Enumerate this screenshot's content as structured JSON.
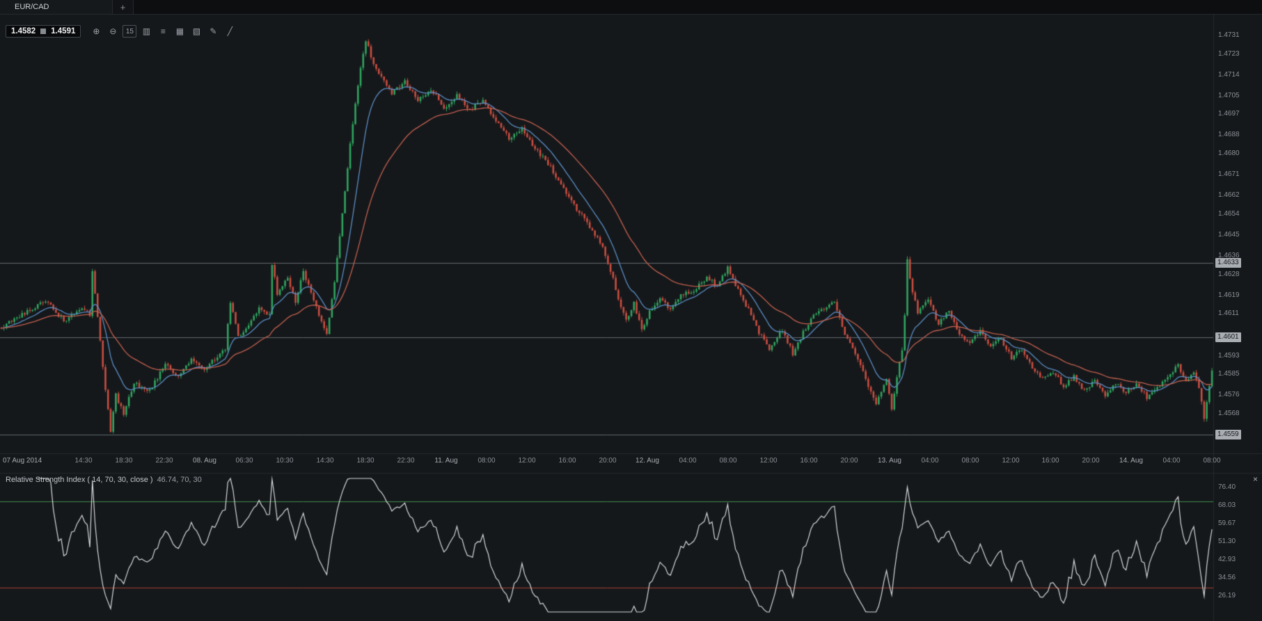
{
  "tabs": {
    "active_label": "EUR/CAD",
    "add_button": "+"
  },
  "toolbar": {
    "sell_price": "1.4582",
    "buy_price": "1.4591",
    "icons": [
      {
        "name": "zoom-in-icon",
        "glyph": "⊕",
        "boxed": false
      },
      {
        "name": "zoom-out-icon",
        "glyph": "⊖",
        "boxed": false
      },
      {
        "name": "timeframe-button",
        "glyph": "15",
        "boxed": true
      },
      {
        "name": "chart-style-icon",
        "glyph": "▥",
        "boxed": false
      },
      {
        "name": "indicators-icon",
        "glyph": "≡",
        "boxed": false
      },
      {
        "name": "compare-icon",
        "glyph": "▦",
        "boxed": false
      },
      {
        "name": "link-icon",
        "glyph": "▧",
        "boxed": false
      },
      {
        "name": "annotate-icon",
        "glyph": "✎",
        "boxed": false
      },
      {
        "name": "line-tool-icon",
        "glyph": "╱",
        "boxed": false
      }
    ]
  },
  "price_axis": {
    "labels": [
      "1.4731",
      "1.4723",
      "1.4714",
      "1.4705",
      "1.4697",
      "1.4688",
      "1.4680",
      "1.4671",
      "1.4662",
      "1.4654",
      "1.4645",
      "1.4636",
      "1.4628",
      "1.4619",
      "1.4611",
      "1.4593",
      "1.4585",
      "1.4576",
      "1.4568"
    ],
    "level_tags": [
      "1.4633",
      "1.4601",
      "1.4559"
    ]
  },
  "time_axis": {
    "labels": [
      "07 Aug 2014",
      "14:30",
      "18:30",
      "22:30",
      "08. Aug",
      "06:30",
      "10:30",
      "14:30",
      "18:30",
      "22:30",
      "11. Aug",
      "08:00",
      "12:00",
      "16:00",
      "20:00",
      "12. Aug",
      "04:00",
      "08:00",
      "12:00",
      "16:00",
      "20:00",
      "13. Aug",
      "04:00",
      "08:00",
      "12:00",
      "16:00",
      "20:00",
      "14. Aug",
      "04:00",
      "08:00"
    ]
  },
  "chart_data": {
    "type": "candlestick",
    "symbol": "EUR/CAD",
    "interval_minutes": 15,
    "visible_range": {
      "high": 1.4731,
      "low": 1.4559
    },
    "horizontal_levels": [
      1.4633,
      1.4601,
      1.4559
    ],
    "candle_count": 466,
    "close_anchors": [
      [
        0,
        1.4605
      ],
      [
        10,
        1.4612
      ],
      [
        17,
        1.4617
      ],
      [
        24,
        1.4608
      ],
      [
        31,
        1.4614
      ],
      [
        34,
        1.4611
      ],
      [
        35,
        1.463
      ],
      [
        37,
        1.461
      ],
      [
        39,
        1.4588
      ],
      [
        42,
        1.4561
      ],
      [
        44,
        1.4576
      ],
      [
        47,
        1.4568
      ],
      [
        51,
        1.4581
      ],
      [
        57,
        1.4578
      ],
      [
        63,
        1.4589
      ],
      [
        68,
        1.4584
      ],
      [
        73,
        1.4591
      ],
      [
        78,
        1.4587
      ],
      [
        83,
        1.4593
      ],
      [
        86,
        1.4596
      ],
      [
        88,
        1.4616
      ],
      [
        91,
        1.4601
      ],
      [
        95,
        1.4606
      ],
      [
        99,
        1.4613
      ],
      [
        103,
        1.461
      ],
      [
        104,
        1.4633
      ],
      [
        106,
        1.462
      ],
      [
        110,
        1.4626
      ],
      [
        113,
        1.4616
      ],
      [
        116,
        1.4629
      ],
      [
        119,
        1.462
      ],
      [
        122,
        1.4611
      ],
      [
        125,
        1.4602
      ],
      [
        128,
        1.4625
      ],
      [
        131,
        1.4655
      ],
      [
        134,
        1.4684
      ],
      [
        137,
        1.471
      ],
      [
        140,
        1.4729
      ],
      [
        143,
        1.4719
      ],
      [
        146,
        1.4713
      ],
      [
        150,
        1.4706
      ],
      [
        155,
        1.4711
      ],
      [
        160,
        1.4703
      ],
      [
        165,
        1.4708
      ],
      [
        170,
        1.47
      ],
      [
        175,
        1.4705
      ],
      [
        180,
        1.4699
      ],
      [
        185,
        1.4703
      ],
      [
        190,
        1.4694
      ],
      [
        195,
        1.4687
      ],
      [
        200,
        1.4691
      ],
      [
        205,
        1.4682
      ],
      [
        210,
        1.4676
      ],
      [
        215,
        1.4667
      ],
      [
        220,
        1.4658
      ],
      [
        225,
        1.465
      ],
      [
        230,
        1.4642
      ],
      [
        234,
        1.463
      ],
      [
        237,
        1.4618
      ],
      [
        240,
        1.4608
      ],
      [
        243,
        1.4616
      ],
      [
        246,
        1.4604
      ],
      [
        249,
        1.4612
      ],
      [
        253,
        1.4618
      ],
      [
        257,
        1.4613
      ],
      [
        261,
        1.4619
      ],
      [
        266,
        1.4621
      ],
      [
        271,
        1.4627
      ],
      [
        275,
        1.4623
      ],
      [
        279,
        1.4631
      ],
      [
        283,
        1.4621
      ],
      [
        287,
        1.4613
      ],
      [
        291,
        1.4603
      ],
      [
        295,
        1.4596
      ],
      [
        300,
        1.4604
      ],
      [
        304,
        1.4594
      ],
      [
        308,
        1.4603
      ],
      [
        312,
        1.461
      ],
      [
        316,
        1.4613
      ],
      [
        320,
        1.4617
      ],
      [
        324,
        1.4602
      ],
      [
        327,
        1.4596
      ],
      [
        330,
        1.4589
      ],
      [
        333,
        1.458
      ],
      [
        336,
        1.4572
      ],
      [
        338,
        1.4578
      ],
      [
        340,
        1.4583
      ],
      [
        342,
        1.457
      ],
      [
        344,
        1.4583
      ],
      [
        346,
        1.4596
      ],
      [
        347,
        1.461
      ],
      [
        348,
        1.4634
      ],
      [
        350,
        1.462
      ],
      [
        352,
        1.4612
      ],
      [
        356,
        1.4617
      ],
      [
        360,
        1.4607
      ],
      [
        364,
        1.4612
      ],
      [
        368,
        1.4603
      ],
      [
        372,
        1.4598
      ],
      [
        376,
        1.4604
      ],
      [
        380,
        1.4597
      ],
      [
        384,
        1.46
      ],
      [
        388,
        1.4592
      ],
      [
        392,
        1.4596
      ],
      [
        396,
        1.4588
      ],
      [
        400,
        1.4583
      ],
      [
        404,
        1.4586
      ],
      [
        408,
        1.458
      ],
      [
        412,
        1.4584
      ],
      [
        416,
        1.4578
      ],
      [
        420,
        1.4582
      ],
      [
        424,
        1.4576
      ],
      [
        428,
        1.4581
      ],
      [
        432,
        1.4577
      ],
      [
        436,
        1.4581
      ],
      [
        440,
        1.4575
      ],
      [
        444,
        1.4579
      ],
      [
        448,
        1.4584
      ],
      [
        452,
        1.4589
      ],
      [
        455,
        1.4582
      ],
      [
        458,
        1.4586
      ],
      [
        460,
        1.4579
      ],
      [
        462,
        1.4566
      ],
      [
        464,
        1.458
      ],
      [
        465,
        1.4587
      ]
    ]
  },
  "rsi": {
    "title": "Relative Strength Index ( 14, 70, 30, close )",
    "current_values": "46.74, 70, 30",
    "period": 14,
    "overbought": 70,
    "oversold": 30,
    "axis_labels": [
      "76.40",
      "68.03",
      "59.67",
      "51.30",
      "42.93",
      "34.56",
      "26.19"
    ],
    "close_button": "×"
  },
  "colors": {
    "background": "#15181b",
    "candle_up": "#2fa45e",
    "candle_down": "#c94d40",
    "ma_fast": "#5b8ec4",
    "ma_slow": "#c4604f",
    "level_line": "#62686e",
    "separator": "#24282c",
    "rsi_line": "#d8dadc",
    "overbought": "#3d8c4c",
    "oversold": "#a6412f"
  }
}
